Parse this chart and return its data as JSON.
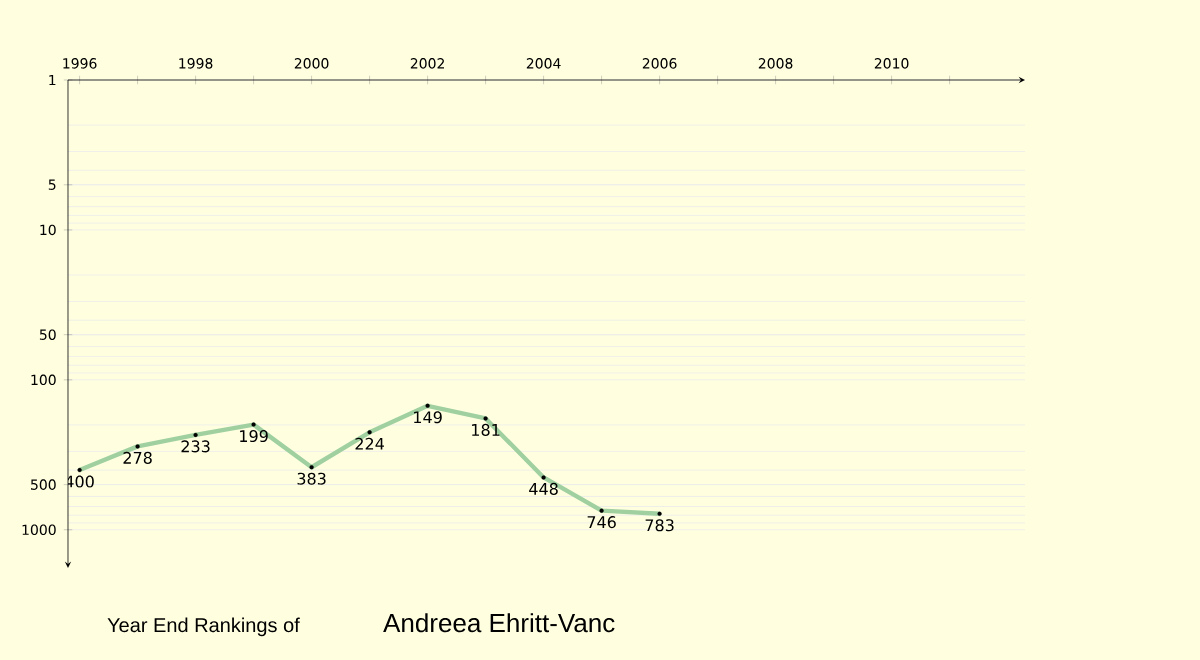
{
  "chart_data": {
    "type": "line",
    "title": "Year End Rankings of",
    "subtitle": "Andreea Ehritt-Vanc",
    "x": [
      1996,
      1997,
      1998,
      1999,
      2000,
      2001,
      2002,
      2003,
      2004,
      2005,
      2006
    ],
    "values": [
      400,
      278,
      233,
      199,
      383,
      224,
      149,
      181,
      448,
      746,
      783
    ],
    "color": "#a0d0a0",
    "marker": "circle",
    "data_labels": true,
    "log": "y",
    "grid": "y",
    "xlim": [
      1995.8,
      2012.3
    ],
    "xticks": [
      1996,
      {
        "value": 1997,
        "label": null
      },
      1998,
      {
        "value": 1999,
        "label": null
      },
      2000,
      {
        "value": 2001,
        "label": null
      },
      2002,
      {
        "value": 2003,
        "label": null
      },
      2004,
      {
        "value": 2005,
        "label": null
      },
      2006,
      {
        "value": 2007,
        "label": null
      },
      2008,
      {
        "value": 2009,
        "label": null
      },
      2010,
      {
        "value": 2011,
        "label": null
      }
    ],
    "ylim": [
      1800,
      1
    ],
    "yticks": [
      1,
      5,
      10,
      50,
      100,
      500,
      1000
    ]
  }
}
